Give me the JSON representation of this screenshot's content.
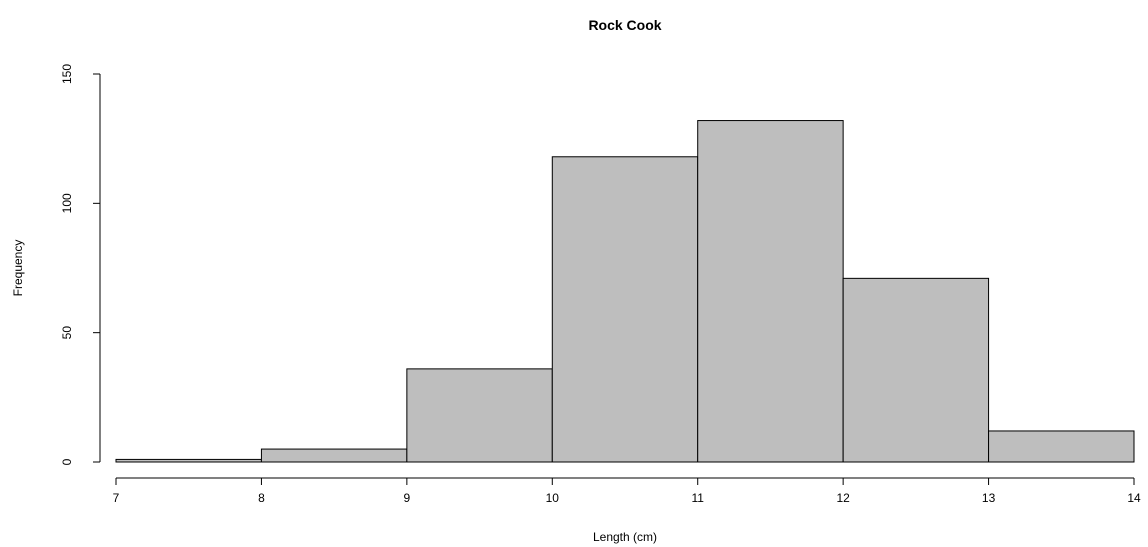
{
  "chart_data": {
    "type": "bar",
    "title": "Rock Cook",
    "xlabel": "Length (cm)",
    "ylabel": "Frequency",
    "bins": [
      {
        "start": 7,
        "end": 8,
        "count": 1
      },
      {
        "start": 8,
        "end": 9,
        "count": 5
      },
      {
        "start": 9,
        "end": 10,
        "count": 36
      },
      {
        "start": 10,
        "end": 11,
        "count": 118
      },
      {
        "start": 11,
        "end": 12,
        "count": 132
      },
      {
        "start": 12,
        "end": 13,
        "count": 71
      },
      {
        "start": 13,
        "end": 14,
        "count": 12
      }
    ],
    "xlim": [
      7,
      14
    ],
    "ylim": [
      0,
      150
    ],
    "x_ticks": [
      "7",
      "8",
      "9",
      "10",
      "11",
      "12",
      "13",
      "14"
    ],
    "y_ticks": [
      "0",
      "50",
      "100",
      "150"
    ],
    "grid": false,
    "colors": {
      "bar_fill": "#bebebe",
      "bar_stroke": "#000000"
    }
  }
}
